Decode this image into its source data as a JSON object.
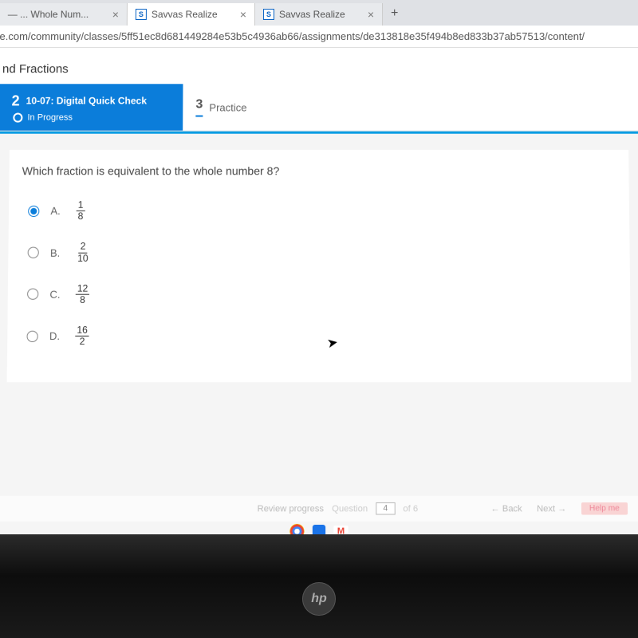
{
  "browser": {
    "tabs": [
      {
        "title": "— ... Whole Num...",
        "favicon": "",
        "active": false,
        "truncated": true
      },
      {
        "title": "Savvas Realize",
        "favicon": "S",
        "active": true
      },
      {
        "title": "Savvas Realize",
        "favicon": "S",
        "active": false
      }
    ],
    "new_tab": "+",
    "url": "e.com/community/classes/5ff51ec8d681449284e53b5c4936ab66/assignments/de313818e35f494b8ed833b37ab57513/content/"
  },
  "header": {
    "title_suffix": "nd Fractions"
  },
  "steps": {
    "active": {
      "number": "2",
      "label": "10-07: Digital Quick Check",
      "status": "In Progress"
    },
    "next": {
      "number": "3",
      "label": "Practice"
    }
  },
  "question": {
    "text": "Which fraction is equivalent to the whole number 8?",
    "options": [
      {
        "letter": "A.",
        "num": "1",
        "den": "8",
        "selected": true
      },
      {
        "letter": "B.",
        "num": "2",
        "den": "10",
        "selected": false
      },
      {
        "letter": "C.",
        "num": "12",
        "den": "8",
        "selected": false
      },
      {
        "letter": "D.",
        "num": "16",
        "den": "2",
        "selected": false
      }
    ]
  },
  "footer": {
    "review": "Review progress",
    "question_label": "Question",
    "question_num": "4",
    "of_label": "of 6",
    "back": "← Back",
    "next": "Next →",
    "help": "Help me"
  },
  "laptop": {
    "brand": "hp"
  },
  "colors": {
    "primary_blue": "#0b7dda",
    "accent_blue": "#0b9de3",
    "tab_bg": "#e8eaed",
    "text": "#444"
  }
}
